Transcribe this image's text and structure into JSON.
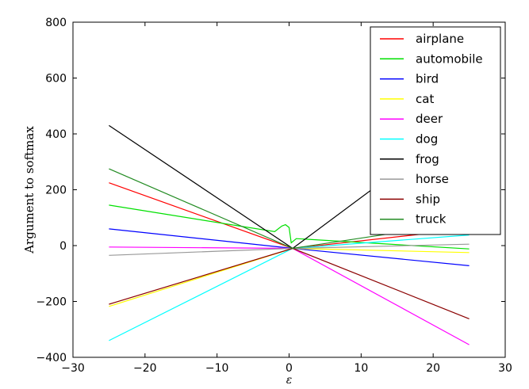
{
  "chart_data": {
    "type": "line",
    "title": "",
    "xlabel": "ε",
    "ylabel": "Argument to softmax",
    "xlim": [
      -30,
      30
    ],
    "ylim": [
      -400,
      800
    ],
    "xticks": [
      -30,
      -20,
      -10,
      0,
      10,
      20,
      30
    ],
    "yticks": [
      -400,
      -200,
      0,
      200,
      400,
      600,
      800
    ],
    "xtick_labels": [
      "−30",
      "−20",
      "−10",
      "0",
      "10",
      "20",
      "30"
    ],
    "ytick_labels": [
      "−400",
      "−200",
      "0",
      "200",
      "400",
      "600",
      "800"
    ],
    "legend_position": "top-right",
    "series": [
      {
        "name": "airplane",
        "color": "#ff0000",
        "x": [
          -25,
          0.5,
          25
        ],
        "y": [
          225,
          -10,
          60
        ]
      },
      {
        "name": "automobile",
        "color": "#00e000",
        "x": [
          -25,
          -2,
          -1,
          -0.5,
          0,
          0.3,
          1,
          25
        ],
        "y": [
          145,
          50,
          70,
          75,
          65,
          10,
          25,
          -12
        ]
      },
      {
        "name": "bird",
        "color": "#0000ff",
        "x": [
          -25,
          0.5,
          25
        ],
        "y": [
          60,
          -10,
          -72
        ]
      },
      {
        "name": "cat",
        "color": "#ffff00",
        "x": [
          -25,
          0.5,
          25
        ],
        "y": [
          -218,
          -10,
          -25
        ]
      },
      {
        "name": "deer",
        "color": "#ff00ff",
        "x": [
          -25,
          0.5,
          25
        ],
        "y": [
          -5,
          -10,
          -355
        ]
      },
      {
        "name": "dog",
        "color": "#00ffff",
        "x": [
          -25,
          0.5,
          25
        ],
        "y": [
          -340,
          -10,
          38
        ]
      },
      {
        "name": "frog",
        "color": "#000000",
        "x": [
          -25,
          0.5,
          25
        ],
        "y": [
          430,
          -10,
          460
        ]
      },
      {
        "name": "horse",
        "color": "#999999",
        "x": [
          -25,
          0.5,
          25
        ],
        "y": [
          -35,
          -10,
          5
        ]
      },
      {
        "name": "ship",
        "color": "#8b0000",
        "x": [
          -25,
          0.5,
          25
        ],
        "y": [
          -210,
          -10,
          -262
        ]
      },
      {
        "name": "truck",
        "color": "#228b22",
        "x": [
          -25,
          0.5,
          25
        ],
        "y": [
          275,
          -10,
          85
        ]
      }
    ]
  }
}
